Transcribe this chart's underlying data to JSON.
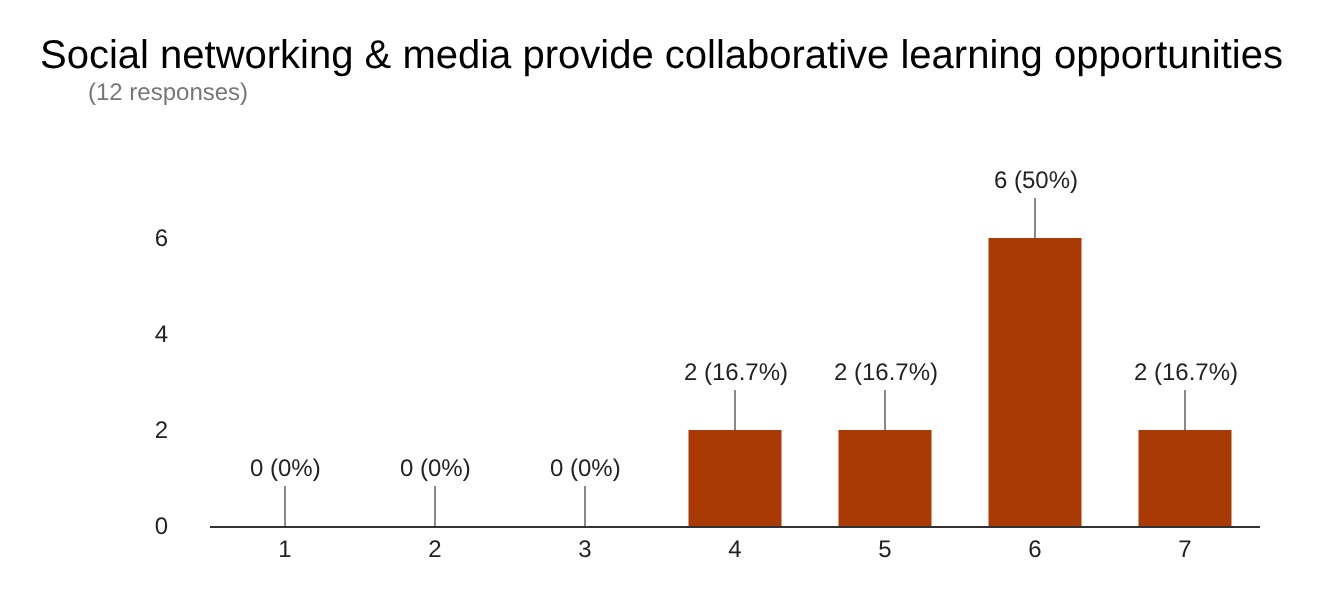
{
  "chart_data": {
    "type": "bar",
    "title": "Social networking & media provide collaborative learning opportunities",
    "subtitle": "(12 responses)",
    "categories": [
      "1",
      "2",
      "3",
      "4",
      "5",
      "6",
      "7"
    ],
    "values": [
      0,
      0,
      0,
      2,
      2,
      6,
      2
    ],
    "value_labels": [
      "0 (0%)",
      "0 (0%)",
      "0 (0%)",
      "2 (16.7%)",
      "2 (16.7%)",
      "6 (50%)",
      "2 (16.7%)"
    ],
    "color": "#a93a05",
    "ylim": [
      0,
      6
    ],
    "yticks": [
      0,
      2,
      4,
      6
    ],
    "legend": false
  }
}
